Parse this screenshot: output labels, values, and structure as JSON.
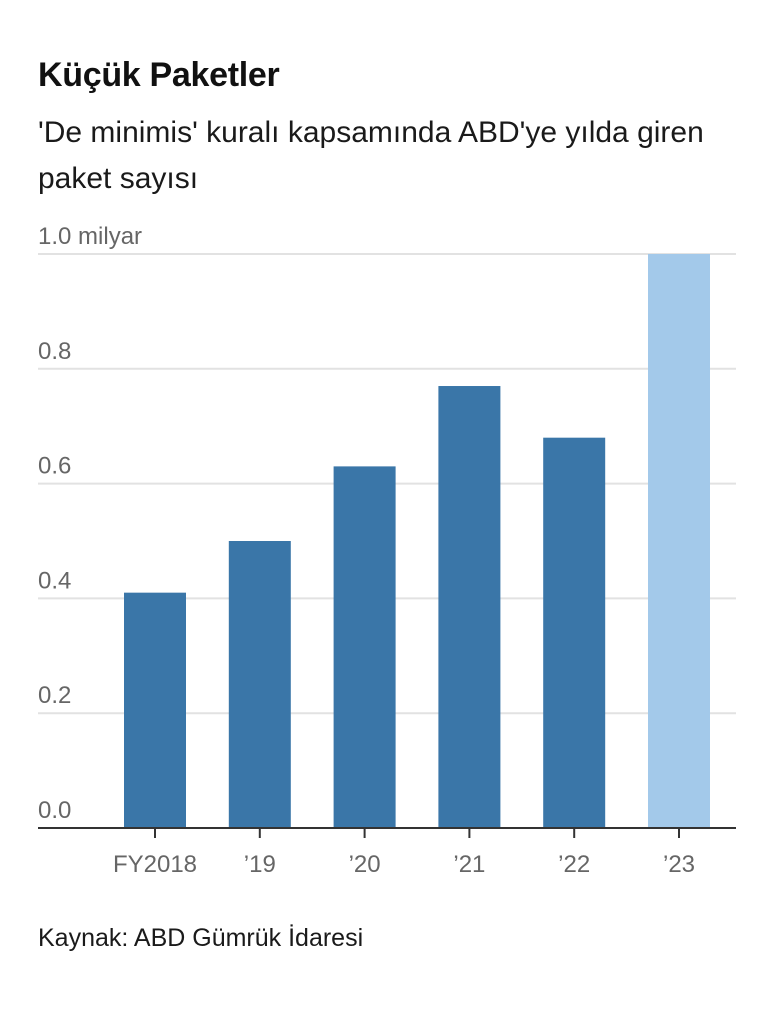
{
  "header": {
    "title": "Küçük Paketler",
    "subtitle": "'De minimis' kuralı kapsamında ABD'ye yılda giren paket sayısı"
  },
  "footer": {
    "source": "Kaynak: ABD Gümrük İdaresi"
  },
  "chart_data": {
    "type": "bar",
    "title": "Küçük Paketler",
    "subtitle": "'De minimis' kuralı kapsamında ABD'ye yılda giren paket sayısı",
    "categories": [
      "FY2018",
      "’19",
      "’20",
      "’21",
      "’22",
      "’23"
    ],
    "values": [
      0.41,
      0.5,
      0.63,
      0.77,
      0.68,
      1.0
    ],
    "ylim": [
      0,
      1.0
    ],
    "yticks": [
      0.0,
      0.2,
      0.4,
      0.6,
      0.8,
      1.0
    ],
    "ytick_labels": [
      "0.0",
      "0.2",
      "0.4",
      "0.6",
      "0.8",
      "1.0 milyar"
    ],
    "grid": true,
    "colors": {
      "bar": "#3a76a8",
      "bar_highlight": "#a3c9ea",
      "grid": "#e2e2e2",
      "axis": "#333333"
    },
    "highlight_index": 5
  }
}
